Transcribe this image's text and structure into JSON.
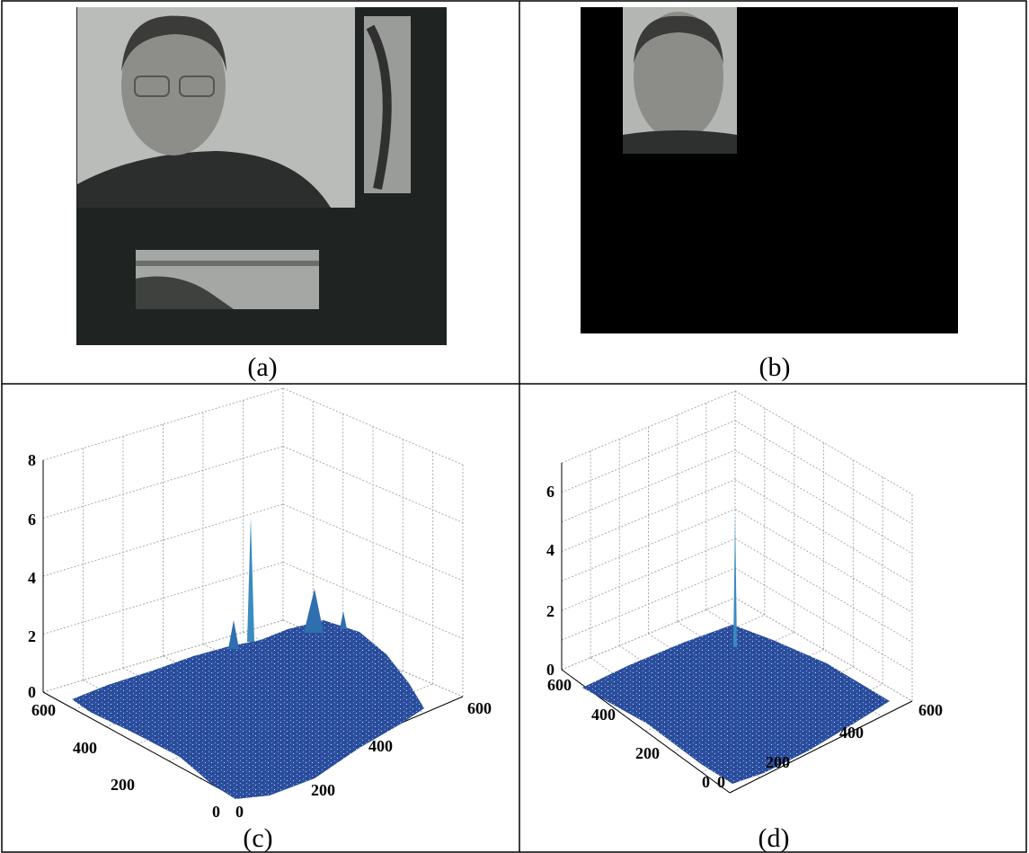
{
  "panels": [
    {
      "caption": "(a)"
    },
    {
      "caption": "(b)"
    },
    {
      "caption": "(c)",
      "z_ticks": [
        "0",
        "2",
        "4",
        "6",
        "8"
      ],
      "left_ticks": [
        "600",
        "400",
        "200",
        "0"
      ],
      "right_ticks": [
        "0",
        "200",
        "400",
        "600"
      ]
    },
    {
      "caption": "(d)",
      "z_ticks": [
        "0",
        "2",
        "4",
        "6"
      ],
      "left_ticks": [
        "600",
        "400",
        "200",
        "0"
      ],
      "right_ticks": [
        "0",
        "200",
        "400",
        "600"
      ]
    }
  ]
}
